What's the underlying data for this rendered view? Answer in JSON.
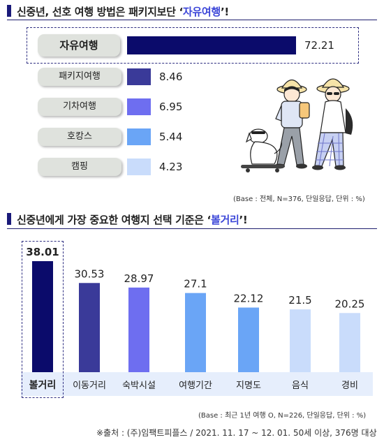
{
  "section1": {
    "title_prefix": "신중년, 선호 여행 방법은 패키지보단 ‘",
    "title_highlight": "자유여행",
    "title_suffix": "’!"
  },
  "section2": {
    "title_prefix": "신중년에게 가장 중요한 여행지 선택 기준은 ‘",
    "title_highlight": "볼거리",
    "title_suffix": "’!"
  },
  "colors": {
    "title_accent": "#3c46d8",
    "bar_dark": "#0b0b6b",
    "bar_mid": "#3a3a99",
    "bar_violet": "#6e6ef0",
    "bar_blue": "#6aa5f6",
    "bar_light": "#c9dcfb"
  },
  "chart_data": [
    {
      "type": "bar",
      "orientation": "horizontal",
      "categories": [
        "자유여행",
        "패키지여행",
        "기차여행",
        "호캉스",
        "캠핑"
      ],
      "values": [
        72.21,
        8.46,
        6.95,
        5.44,
        4.23
      ],
      "value_labels": [
        "72.21",
        "8.46",
        "6.95",
        "5.44",
        "4.23"
      ],
      "colors": [
        "#0b0b6b",
        "#3a3a99",
        "#6e6ef0",
        "#6aa5f6",
        "#c9dcfb"
      ],
      "highlight": "자유여행",
      "note": "(Base : 전체, N=376, 단일응답, 단위 : %)"
    },
    {
      "type": "bar",
      "orientation": "vertical",
      "categories": [
        "볼거리",
        "이동거리",
        "숙박시설",
        "여행기간",
        "지명도",
        "음식",
        "경비"
      ],
      "values": [
        38.01,
        30.53,
        28.97,
        27.1,
        22.12,
        21.5,
        20.25
      ],
      "value_labels": [
        "38.01",
        "30.53",
        "28.97",
        "27.1",
        "22.12",
        "21.5",
        "20.25"
      ],
      "colors": [
        "#0b0b6b",
        "#3a3a99",
        "#6e6ef0",
        "#6aa5f6",
        "#6aa5f6",
        "#c9dcfb",
        "#c9dcfb"
      ],
      "highlight": "볼거리",
      "note": "(Base : 최근 1년 여행 O, N=226, 단일응답, 단위 : %)"
    }
  ],
  "source": "※출처 : (주)임팩트피플스 / 2021. 11. 17 ~ 12. 01. 50세 이상, 376명 대상",
  "illustration": {
    "icons": [
      "travelers-illustration",
      "dog-on-skateboard-icon"
    ]
  }
}
